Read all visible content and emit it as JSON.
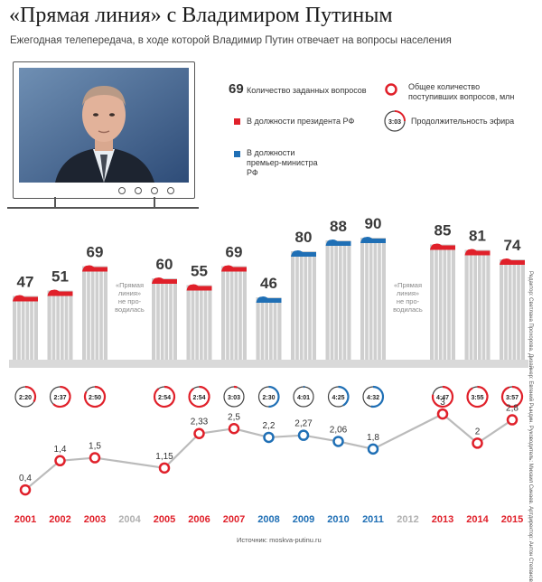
{
  "header": {
    "title": "«Прямая линия» с Владимиром Путиным",
    "subtitle": "Ежегодная телепередача, в ходе которой Владимир Путин отвечает на вопросы населения"
  },
  "legend": {
    "questions_num": "69",
    "questions_label": "Количество заданных вопросов",
    "president_label": "В должности президента РФ",
    "premier_label": "В должности премьер-министра РФ",
    "total_label": "Общее количество поступивших вопросов, млн",
    "duration_icon": "3:03",
    "duration_label": "Продолжительность эфира"
  },
  "colors": {
    "president": "#e0202a",
    "premier": "#1f6fb5",
    "gray_year": "#b0b0b0",
    "line": "#bbbbbb"
  },
  "no_event_note": [
    "«Прямая",
    "линия»",
    "не про-",
    "водилась"
  ],
  "chart_data": {
    "type": "bar",
    "title": "«Прямая линия» с Владимиром Путиным",
    "categories": [
      "2001",
      "2002",
      "2003",
      "2004",
      "2005",
      "2006",
      "2007",
      "2008",
      "2009",
      "2010",
      "2011",
      "2012",
      "2013",
      "2014",
      "2015"
    ],
    "questions": [
      47,
      51,
      69,
      null,
      60,
      55,
      69,
      46,
      80,
      88,
      90,
      null,
      85,
      81,
      74
    ],
    "role": [
      "president",
      "president",
      "president",
      null,
      "president",
      "president",
      "president",
      "premier",
      "premier",
      "premier",
      "premier",
      null,
      "president",
      "president",
      "president"
    ],
    "durations": [
      "2:20",
      "2:37",
      "2:50",
      null,
      "2:54",
      "2:54",
      "3:03",
      "2:30",
      "4:01",
      "4:25",
      "4:32",
      null,
      "4:47",
      "3:55",
      "3:57"
    ],
    "total_questions_mln": [
      0.4,
      1.4,
      1.5,
      null,
      1.15,
      2.33,
      2.5,
      2.2,
      2.27,
      2.06,
      1.8,
      null,
      3,
      2,
      2.8
    ],
    "total_labels": [
      "0,4",
      "1,4",
      "1,5",
      null,
      "1,15",
      "2,33",
      "2,5",
      "2,2",
      "2,27",
      "2,06",
      "1,8",
      null,
      "3",
      "2",
      "2,8"
    ],
    "series": [
      {
        "name": "Количество заданных вопросов",
        "values": [
          47,
          51,
          69,
          null,
          60,
          55,
          69,
          46,
          80,
          88,
          90,
          null,
          85,
          81,
          74
        ]
      },
      {
        "name": "Общее количество поступивших вопросов, млн",
        "values": [
          0.4,
          1.4,
          1.5,
          null,
          1.15,
          2.33,
          2.5,
          2.2,
          2.27,
          2.06,
          1.8,
          null,
          3,
          2,
          2.8
        ]
      }
    ],
    "ylim_questions": [
      0,
      100
    ],
    "ylim_total": [
      0,
      3
    ]
  },
  "footer": {
    "source": "Источник: moskva-putinu.ru",
    "credits": "Редактор: Светлана Прохорова. Дизайнер: Евгений Рындин. Руководитель: Михаил Синаев. Артдиректор: Антон Степанов"
  }
}
